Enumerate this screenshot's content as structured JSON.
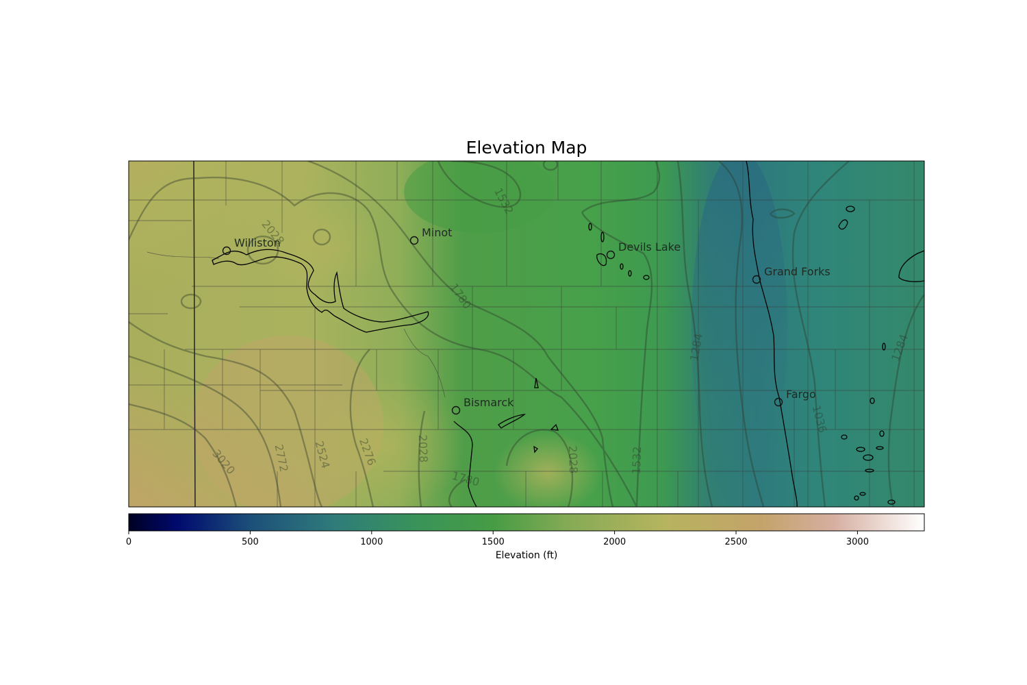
{
  "title": "Elevation Map",
  "colorbar": {
    "label": "Elevation (ft)",
    "ticks": [
      "0",
      "500",
      "1000",
      "1500",
      "2000",
      "2500",
      "3000"
    ],
    "tick_values": [
      0,
      500,
      1000,
      1500,
      2000,
      2500,
      3000
    ],
    "range": [
      0,
      3275
    ],
    "colormap_stops": [
      {
        "v": 0,
        "color": "#000022"
      },
      {
        "v": 200,
        "color": "#000a6e"
      },
      {
        "v": 500,
        "color": "#1c4f79"
      },
      {
        "v": 850,
        "color": "#2f7c7a"
      },
      {
        "v": 1200,
        "color": "#3a9458"
      },
      {
        "v": 1500,
        "color": "#469c44"
      },
      {
        "v": 1800,
        "color": "#84aa55"
      },
      {
        "v": 2200,
        "color": "#b6b45e"
      },
      {
        "v": 2600,
        "color": "#c4a36a"
      },
      {
        "v": 2900,
        "color": "#d6aea0"
      },
      {
        "v": 3275,
        "color": "#ffffff"
      }
    ]
  },
  "cities": [
    {
      "name": "Williston",
      "color": "#1f2a22"
    },
    {
      "name": "Minot",
      "color": "#1f2a22"
    },
    {
      "name": "Devils Lake",
      "color": "#1f2a22"
    },
    {
      "name": "Grand Forks",
      "color": "#1f2a22"
    },
    {
      "name": "Bismarck",
      "color": "#1f2a22"
    },
    {
      "name": "Fargo",
      "color": "#1f2a22"
    }
  ],
  "contour_levels": [
    "1036",
    "1284",
    "1532",
    "1780",
    "2028",
    "2276",
    "2524",
    "2772",
    "3020"
  ],
  "contour_labels": [
    {
      "text": "1532"
    },
    {
      "text": "2028"
    },
    {
      "text": "1780"
    },
    {
      "text": "1284"
    },
    {
      "text": "1284"
    },
    {
      "text": "1036"
    },
    {
      "text": "2028"
    },
    {
      "text": "1532"
    },
    {
      "text": "2028"
    },
    {
      "text": "2276"
    },
    {
      "text": "2524"
    },
    {
      "text": "2772"
    },
    {
      "text": "3020"
    },
    {
      "text": "1780"
    }
  ],
  "colors": {
    "contour": "#2d3a2a",
    "boundary": "#333333",
    "river": "#000000"
  }
}
